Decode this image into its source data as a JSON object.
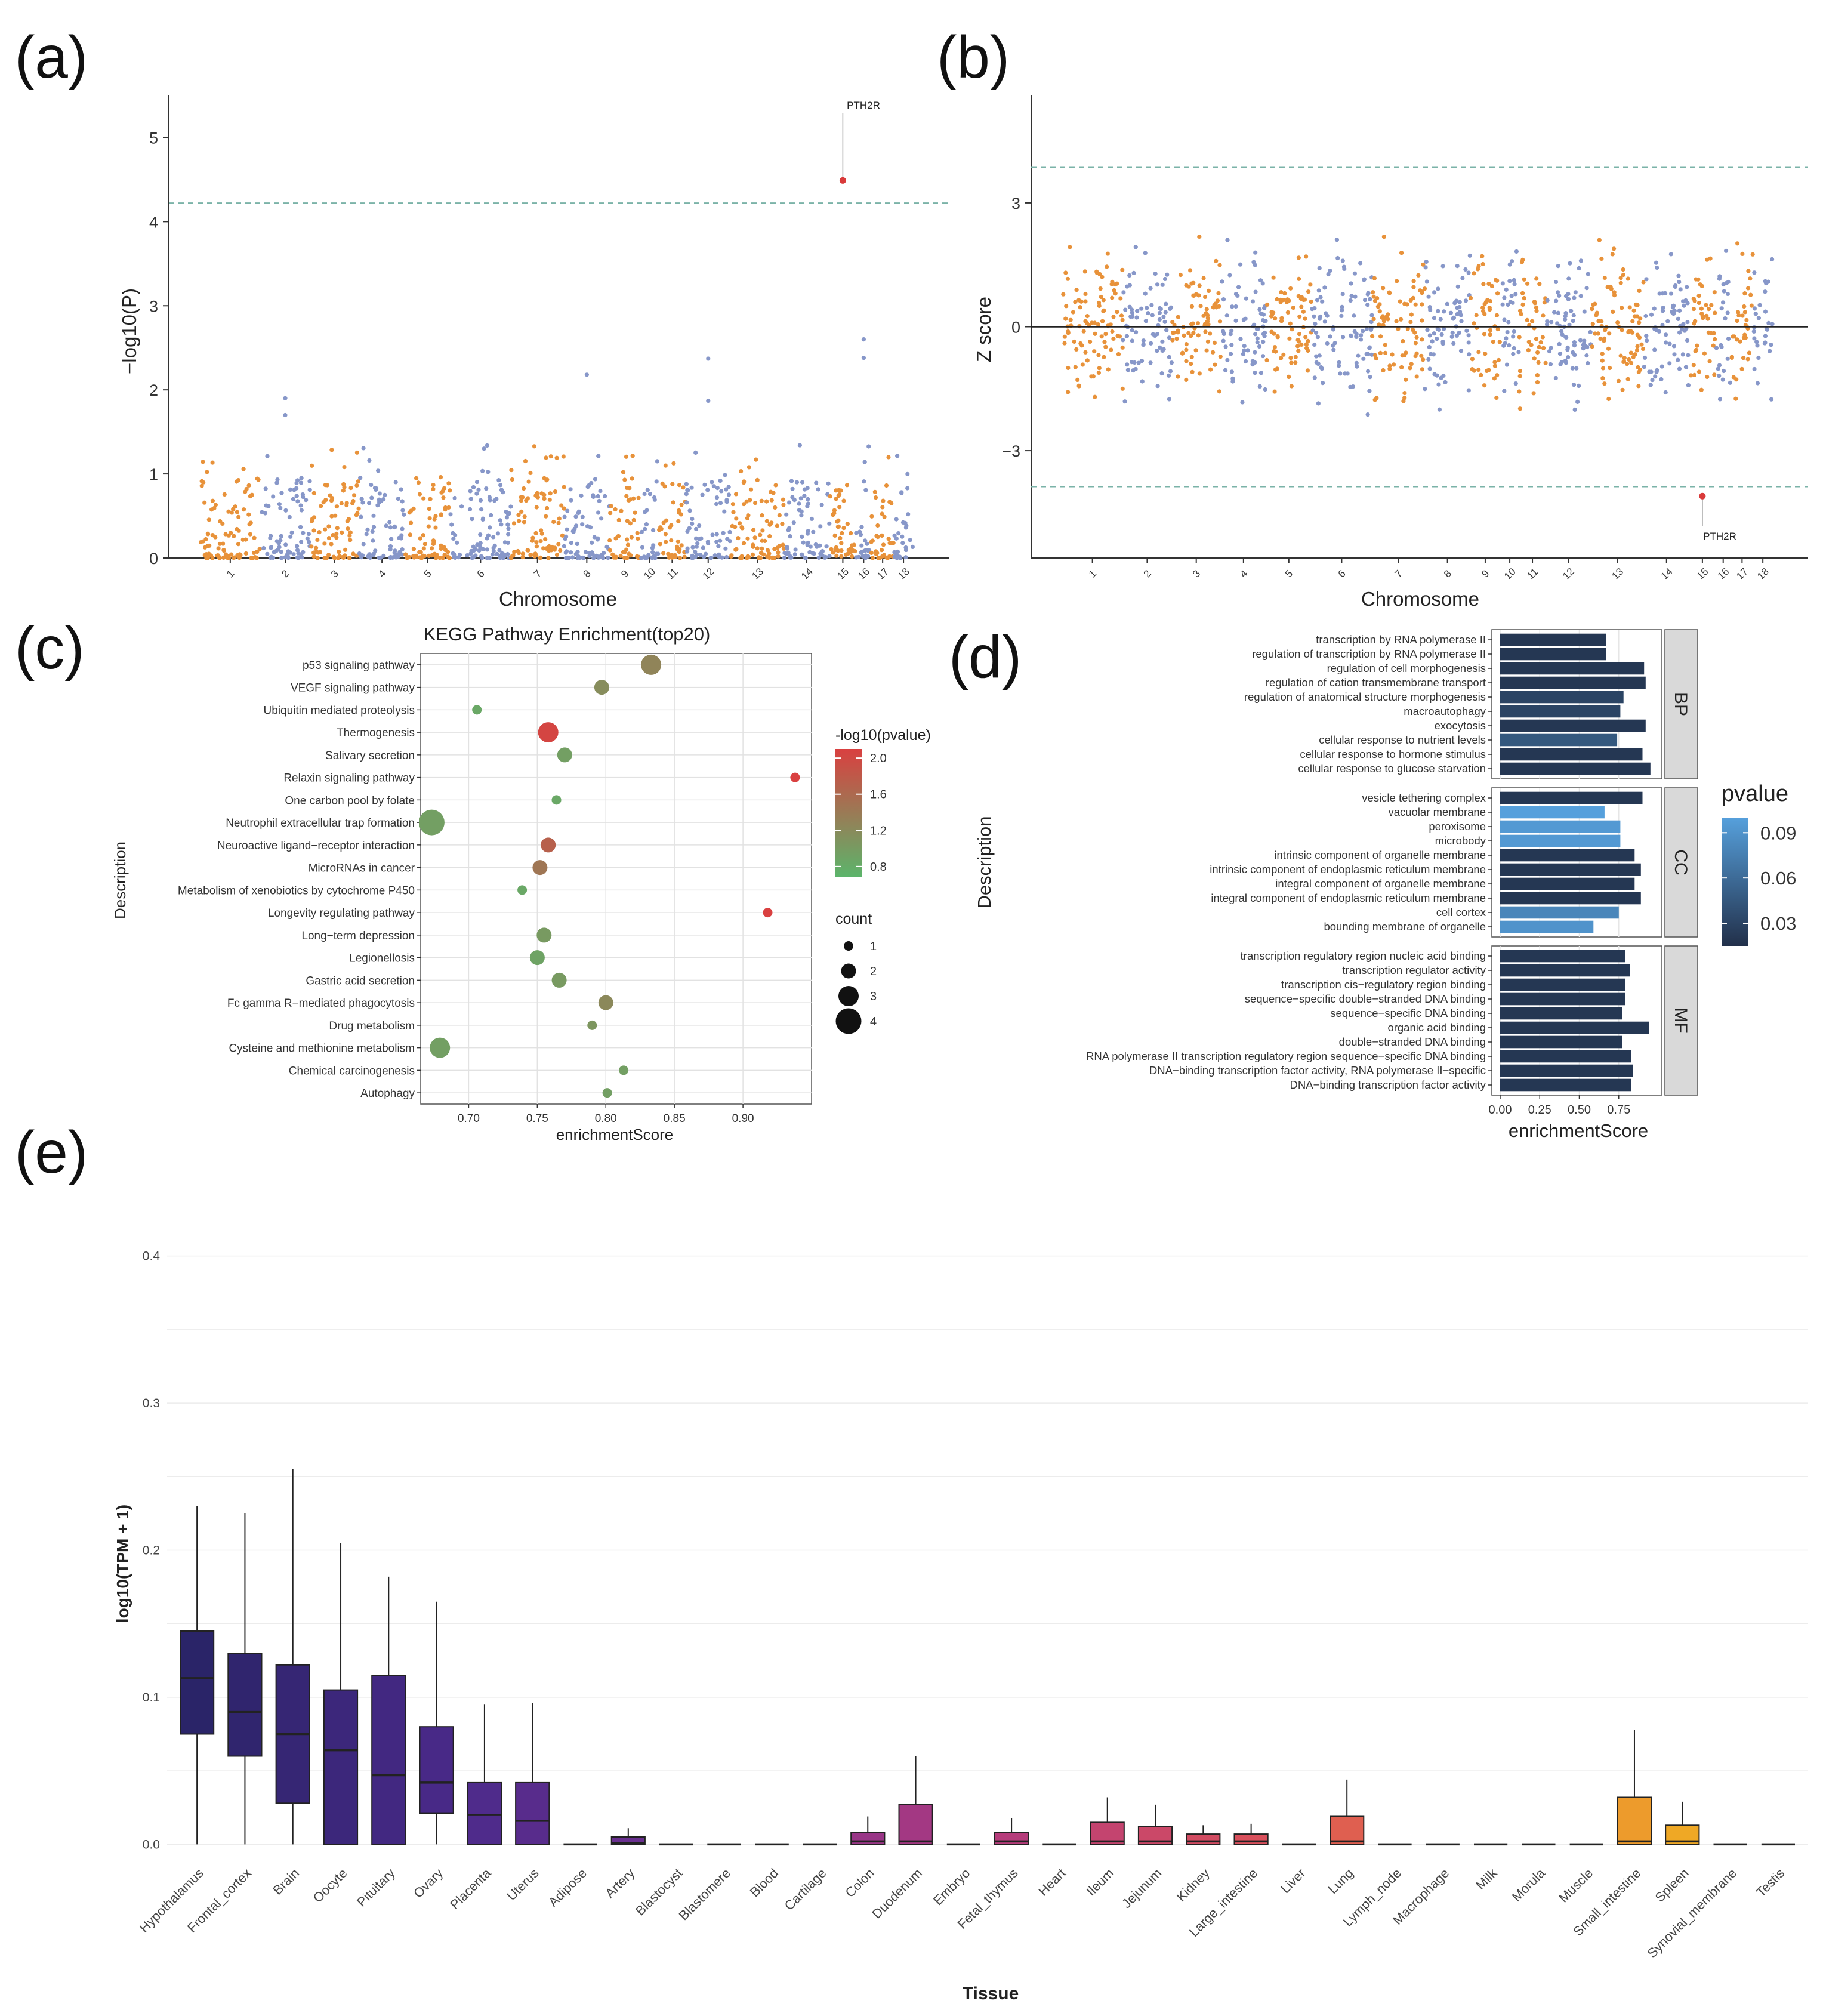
{
  "panel_labels": [
    "(a)",
    "(b)",
    "(c)",
    "(d)",
    "(e)"
  ],
  "colors": {
    "orange": "#e8923a",
    "blue": "#8797c9",
    "threshold": "#7bb3a8",
    "highlight": "#d93a3a",
    "kegg_high": "#d94040",
    "kegg_low": "#5bb56b",
    "go_dark": "#22304a",
    "go_light": "#56a0dc",
    "tissue_ramp": [
      "#2a2468",
      "#4b2a8a",
      "#7a3292",
      "#b23a7e",
      "#d9505c",
      "#e97a3c",
      "#f2c218"
    ]
  },
  "chart_data": [
    {
      "panel": "a",
      "type": "scatter",
      "xlabel": "Chromosome",
      "ylabel": "−log10(P)",
      "ylim": [
        0,
        5.5
      ],
      "y_ticks": [
        0,
        1,
        2,
        3,
        4,
        5
      ],
      "chromosomes": [
        "1",
        "2",
        "3",
        "4",
        "5",
        "6",
        "7",
        "8",
        "9",
        "10",
        "11",
        "12",
        "13",
        "14",
        "15",
        "16",
        "17",
        "18"
      ],
      "chromosome_widths": [
        1.6,
        1.3,
        1.3,
        1.2,
        1.2,
        1.6,
        1.4,
        1.2,
        0.8,
        0.5,
        0.7,
        1.2,
        1.4,
        1.2,
        0.7,
        0.4,
        0.6,
        0.5
      ],
      "threshold": 4.22,
      "highlight": {
        "label": "PTH2R",
        "chromosome": "15",
        "value": 4.49
      },
      "top_points": [
        {
          "chromosome": "2",
          "value": 1.9
        },
        {
          "chromosome": "2",
          "value": 1.7
        },
        {
          "chromosome": "8",
          "value": 2.18
        },
        {
          "chromosome": "12",
          "value": 2.37
        },
        {
          "chromosome": "12",
          "value": 1.87
        },
        {
          "chromosome": "16",
          "value": 2.6
        },
        {
          "chromosome": "16",
          "value": 2.38
        }
      ]
    },
    {
      "panel": "b",
      "type": "scatter",
      "xlabel": "Chromosome",
      "ylabel": "Z score",
      "ylim": [
        -5.6,
        5.6
      ],
      "y_ticks": [
        -3,
        0,
        3
      ],
      "chromosomes": [
        "1",
        "2",
        "3",
        "4",
        "5",
        "6",
        "7",
        "8",
        "9",
        "10",
        "11",
        "12",
        "13",
        "14",
        "15",
        "16",
        "17",
        "18"
      ],
      "thresholds": [
        3.87,
        -3.87
      ],
      "highlight": {
        "label": "PTH2R",
        "chromosome": "15",
        "value": -4.1
      }
    },
    {
      "panel": "c",
      "type": "scatter",
      "title": "KEGG Pathway Enrichment(top20)",
      "xlabel": "enrichmentScore",
      "ylabel": "Description",
      "xlim": [
        0.665,
        0.95
      ],
      "x_ticks": [
        0.7,
        0.75,
        0.8,
        0.85,
        0.9
      ],
      "x_tick_labels": [
        "0.70",
        "0.75",
        "0.80",
        "0.85",
        "0.90"
      ],
      "color_legend_title": "-log10(pvalue)",
      "color_ticks": [
        2.0,
        1.6,
        1.2,
        0.8
      ],
      "color_tick_labels": [
        "2.0",
        "1.6",
        "1.2",
        "0.8"
      ],
      "size_legend_title": "count",
      "size_ticks": [
        1,
        2,
        3,
        4
      ],
      "pathways": [
        {
          "name": "p53 signaling pathway",
          "score": 0.833,
          "count": 3,
          "neglogp": 1.35
        },
        {
          "name": "VEGF signaling pathway",
          "score": 0.797,
          "count": 2,
          "neglogp": 1.25
        },
        {
          "name": "Ubiquitin mediated proteolysis",
          "score": 0.706,
          "count": 1,
          "neglogp": 0.95
        },
        {
          "name": "Thermogenesis",
          "score": 0.758,
          "count": 3,
          "neglogp": 2.05
        },
        {
          "name": "Salivary secretion",
          "score": 0.77,
          "count": 2,
          "neglogp": 1.05
        },
        {
          "name": "Relaxin signaling pathway",
          "score": 0.938,
          "count": 1,
          "neglogp": 2.1
        },
        {
          "name": "One carbon pool by folate",
          "score": 0.764,
          "count": 1,
          "neglogp": 0.95
        },
        {
          "name": "Neutrophil extracellular trap formation",
          "score": 0.673,
          "count": 4,
          "neglogp": 1.05
        },
        {
          "name": "Neuroactive ligand−receptor interaction",
          "score": 0.758,
          "count": 2,
          "neglogp": 1.75
        },
        {
          "name": "MicroRNAs in cancer",
          "score": 0.752,
          "count": 2,
          "neglogp": 1.5
        },
        {
          "name": "Metabolism of xenobiotics by cytochrome P450",
          "score": 0.739,
          "count": 1,
          "neglogp": 0.95
        },
        {
          "name": "Longevity regulating pathway",
          "score": 0.918,
          "count": 1,
          "neglogp": 2.1
        },
        {
          "name": "Long−term depression",
          "score": 0.755,
          "count": 2,
          "neglogp": 1.1
        },
        {
          "name": "Legionellosis",
          "score": 0.75,
          "count": 2,
          "neglogp": 1.0
        },
        {
          "name": "Gastric acid secretion",
          "score": 0.766,
          "count": 2,
          "neglogp": 1.1
        },
        {
          "name": "Fc gamma R−mediated phagocytosis",
          "score": 0.8,
          "count": 2,
          "neglogp": 1.3
        },
        {
          "name": "Drug metabolism",
          "score": 0.79,
          "count": 1,
          "neglogp": 1.15
        },
        {
          "name": "Cysteine and methionine metabolism",
          "score": 0.679,
          "count": 3,
          "neglogp": 1.05
        },
        {
          "name": "Chemical carcinogenesis",
          "score": 0.813,
          "count": 1,
          "neglogp": 1.05
        },
        {
          "name": "Autophagy",
          "score": 0.801,
          "count": 1,
          "neglogp": 1.05
        }
      ]
    },
    {
      "panel": "d",
      "type": "bar",
      "xlabel": "enrichmentScore",
      "ylabel": "Description",
      "xlim": [
        0,
        1.0
      ],
      "x_ticks": [
        0,
        0.25,
        0.5,
        0.75
      ],
      "x_tick_labels": [
        "0.00",
        "0.25",
        "0.50",
        "0.75"
      ],
      "legend_title": "pvalue",
      "legend_ticks": [
        0.09,
        0.06,
        0.03
      ],
      "legend_tick_labels": [
        "0.09",
        "0.06",
        "0.03"
      ],
      "facets": [
        {
          "name": "BP",
          "terms": [
            {
              "term": "transcription by RNA polymerase II",
              "score": 0.67,
              "pvalue": 0.02
            },
            {
              "term": "regulation of transcription by RNA polymerase II",
              "score": 0.67,
              "pvalue": 0.02
            },
            {
              "term": "regulation of cell morphogenesis",
              "score": 0.91,
              "pvalue": 0.02
            },
            {
              "term": "regulation of cation transmembrane transport",
              "score": 0.92,
              "pvalue": 0.02
            },
            {
              "term": "regulation of anatomical structure morphogenesis",
              "score": 0.78,
              "pvalue": 0.03
            },
            {
              "term": "macroautophagy",
              "score": 0.76,
              "pvalue": 0.03
            },
            {
              "term": "exocytosis",
              "score": 0.92,
              "pvalue": 0.02
            },
            {
              "term": "cellular response to nutrient levels",
              "score": 0.74,
              "pvalue": 0.045
            },
            {
              "term": "cellular response to hormone stimulus",
              "score": 0.9,
              "pvalue": 0.02
            },
            {
              "term": "cellular response to glucose starvation",
              "score": 0.95,
              "pvalue": 0.02
            }
          ]
        },
        {
          "name": "CC",
          "terms": [
            {
              "term": "vesicle tethering complex",
              "score": 0.9,
              "pvalue": 0.02
            },
            {
              "term": "vacuolar membrane",
              "score": 0.66,
              "pvalue": 0.1
            },
            {
              "term": "peroxisome",
              "score": 0.76,
              "pvalue": 0.095
            },
            {
              "term": "microbody",
              "score": 0.76,
              "pvalue": 0.095
            },
            {
              "term": "intrinsic component of organelle membrane",
              "score": 0.85,
              "pvalue": 0.02
            },
            {
              "term": "intrinsic component of endoplasmic reticulum membrane",
              "score": 0.89,
              "pvalue": 0.02
            },
            {
              "term": "integral component of organelle membrane",
              "score": 0.85,
              "pvalue": 0.02
            },
            {
              "term": "integral component of endoplasmic reticulum membrane",
              "score": 0.89,
              "pvalue": 0.02
            },
            {
              "term": "cell cortex",
              "score": 0.75,
              "pvalue": 0.08
            },
            {
              "term": "bounding membrane of organelle",
              "score": 0.59,
              "pvalue": 0.09
            }
          ]
        },
        {
          "name": "MF",
          "terms": [
            {
              "term": "transcription regulatory region nucleic acid binding",
              "score": 0.79,
              "pvalue": 0.02
            },
            {
              "term": "transcription regulator activity",
              "score": 0.82,
              "pvalue": 0.02
            },
            {
              "term": "transcription cis−regulatory region binding",
              "score": 0.79,
              "pvalue": 0.02
            },
            {
              "term": "sequence−specific double−stranded DNA binding",
              "score": 0.79,
              "pvalue": 0.02
            },
            {
              "term": "sequence−specific DNA binding",
              "score": 0.77,
              "pvalue": 0.02
            },
            {
              "term": "organic acid binding",
              "score": 0.94,
              "pvalue": 0.02
            },
            {
              "term": "double−stranded DNA binding",
              "score": 0.77,
              "pvalue": 0.02
            },
            {
              "term": "RNA polymerase II transcription regulatory region sequence−specific DNA binding",
              "score": 0.83,
              "pvalue": 0.02
            },
            {
              "term": "DNA−binding transcription factor activity, RNA polymerase II−specific",
              "score": 0.84,
              "pvalue": 0.02
            },
            {
              "term": "DNA−binding transcription factor activity",
              "score": 0.83,
              "pvalue": 0.02
            }
          ]
        }
      ]
    },
    {
      "panel": "e",
      "type": "box",
      "xlabel": "Tissue",
      "ylabel": "log10(TPM + 1)",
      "ylim": [
        -0.01,
        0.41
      ],
      "y_ticks": [
        0.0,
        0.1,
        0.2,
        0.3,
        0.4
      ],
      "y_tick_labels": [
        "0.0",
        "0.1",
        "0.2",
        "0.3",
        "0.4"
      ],
      "tissues": [
        {
          "name": "Hypothalamus",
          "whisker_low": 0,
          "q1": 0.075,
          "median": 0.113,
          "q3": 0.145,
          "whisker_high": 0.23
        },
        {
          "name": "Frontal_cortex",
          "whisker_low": 0,
          "q1": 0.06,
          "median": 0.09,
          "q3": 0.13,
          "whisker_high": 0.225
        },
        {
          "name": "Brain",
          "whisker_low": 0,
          "q1": 0.028,
          "median": 0.075,
          "q3": 0.122,
          "whisker_high": 0.255
        },
        {
          "name": "Oocyte",
          "whisker_low": 0,
          "q1": 0,
          "median": 0.064,
          "q3": 0.105,
          "whisker_high": 0.205
        },
        {
          "name": "Pituitary",
          "whisker_low": 0,
          "q1": 0,
          "median": 0.047,
          "q3": 0.115,
          "whisker_high": 0.182
        },
        {
          "name": "Ovary",
          "whisker_low": 0,
          "q1": 0.021,
          "median": 0.042,
          "q3": 0.08,
          "whisker_high": 0.165
        },
        {
          "name": "Placenta",
          "whisker_low": 0,
          "q1": 0,
          "median": 0.02,
          "q3": 0.042,
          "whisker_high": 0.095
        },
        {
          "name": "Uterus",
          "whisker_low": 0,
          "q1": 0,
          "median": 0.016,
          "q3": 0.042,
          "whisker_high": 0.096
        },
        {
          "name": "Adipose",
          "whisker_low": 0,
          "q1": 0,
          "median": 0,
          "q3": 0,
          "whisker_high": 0
        },
        {
          "name": "Artery",
          "whisker_low": 0,
          "q1": 0,
          "median": 0.001,
          "q3": 0.005,
          "whisker_high": 0.011
        },
        {
          "name": "Blastocyst",
          "whisker_low": 0,
          "q1": 0,
          "median": 0,
          "q3": 0,
          "whisker_high": 0
        },
        {
          "name": "Blastomere",
          "whisker_low": 0,
          "q1": 0,
          "median": 0,
          "q3": 0,
          "whisker_high": 0
        },
        {
          "name": "Blood",
          "whisker_low": 0,
          "q1": 0,
          "median": 0,
          "q3": 0,
          "whisker_high": 0
        },
        {
          "name": "Cartilage",
          "whisker_low": 0,
          "q1": 0,
          "median": 0,
          "q3": 0,
          "whisker_high": 0
        },
        {
          "name": "Colon",
          "whisker_low": 0,
          "q1": 0,
          "median": 0.002,
          "q3": 0.008,
          "whisker_high": 0.019
        },
        {
          "name": "Duodenum",
          "whisker_low": 0,
          "q1": 0,
          "median": 0.002,
          "q3": 0.027,
          "whisker_high": 0.06
        },
        {
          "name": "Embryo",
          "whisker_low": 0,
          "q1": 0,
          "median": 0,
          "q3": 0,
          "whisker_high": 0
        },
        {
          "name": "Fetal_thymus",
          "whisker_low": 0,
          "q1": 0,
          "median": 0.002,
          "q3": 0.008,
          "whisker_high": 0.018
        },
        {
          "name": "Heart",
          "whisker_low": 0,
          "q1": 0,
          "median": 0,
          "q3": 0,
          "whisker_high": 0
        },
        {
          "name": "Ileum",
          "whisker_low": 0,
          "q1": 0,
          "median": 0.002,
          "q3": 0.015,
          "whisker_high": 0.032
        },
        {
          "name": "Jejunum",
          "whisker_low": 0,
          "q1": 0,
          "median": 0.002,
          "q3": 0.012,
          "whisker_high": 0.027
        },
        {
          "name": "Kidney",
          "whisker_low": 0,
          "q1": 0,
          "median": 0.002,
          "q3": 0.007,
          "whisker_high": 0.013
        },
        {
          "name": "Large_intestine",
          "whisker_low": 0,
          "q1": 0,
          "median": 0.002,
          "q3": 0.007,
          "whisker_high": 0.014
        },
        {
          "name": "Liver",
          "whisker_low": 0,
          "q1": 0,
          "median": 0,
          "q3": 0,
          "whisker_high": 0
        },
        {
          "name": "Lung",
          "whisker_low": 0,
          "q1": 0,
          "median": 0.002,
          "q3": 0.019,
          "whisker_high": 0.044
        },
        {
          "name": "Lymph_node",
          "whisker_low": 0,
          "q1": 0,
          "median": 0,
          "q3": 0,
          "whisker_high": 0
        },
        {
          "name": "Macrophage",
          "whisker_low": 0,
          "q1": 0,
          "median": 0,
          "q3": 0,
          "whisker_high": 0
        },
        {
          "name": "Milk",
          "whisker_low": 0,
          "q1": 0,
          "median": 0,
          "q3": 0,
          "whisker_high": 0
        },
        {
          "name": "Morula",
          "whisker_low": 0,
          "q1": 0,
          "median": 0,
          "q3": 0,
          "whisker_high": 0
        },
        {
          "name": "Muscle",
          "whisker_low": 0,
          "q1": 0,
          "median": 0,
          "q3": 0,
          "whisker_high": 0
        },
        {
          "name": "Small_intestine",
          "whisker_low": 0,
          "q1": 0,
          "median": 0.002,
          "q3": 0.032,
          "whisker_high": 0.078
        },
        {
          "name": "Spleen",
          "whisker_low": 0,
          "q1": 0,
          "median": 0.002,
          "q3": 0.013,
          "whisker_high": 0.029
        },
        {
          "name": "Synovial_membrane",
          "whisker_low": 0,
          "q1": 0,
          "median": 0,
          "q3": 0,
          "whisker_high": 0
        },
        {
          "name": "Testis",
          "whisker_low": 0,
          "q1": 0,
          "median": 0,
          "q3": 0,
          "whisker_high": 0
        }
      ]
    }
  ]
}
